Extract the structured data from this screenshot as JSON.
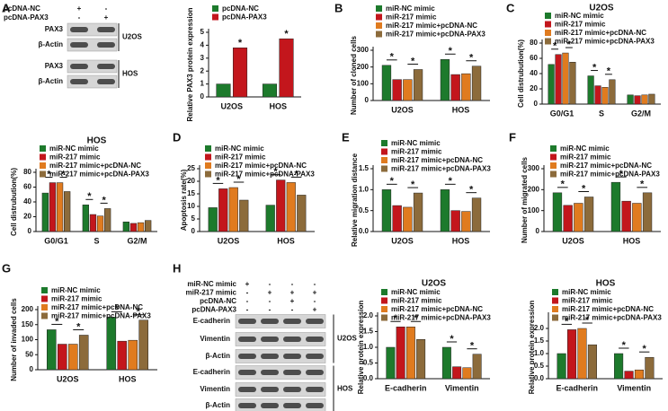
{
  "chart_data": [
    {
      "type": "bar",
      "panel": "A",
      "ylabel": "Relative PAX3 protein expression",
      "categories": [
        "U2OS",
        "HOS"
      ],
      "series": [
        {
          "name": "pcDNA-NC",
          "color": "#1d7a2c",
          "values": [
            1,
            1
          ]
        },
        {
          "name": "pcDNA-PAX3",
          "color": "#c3161c",
          "values": [
            3.8,
            4.5
          ]
        }
      ],
      "ylim": [
        0,
        5
      ],
      "yticks": [
        0,
        1,
        2,
        3,
        4,
        5
      ],
      "annotations": [
        "*",
        "*"
      ]
    },
    {
      "type": "bar",
      "panel": "B",
      "ylabel": "Number of cloned cells",
      "categories": [
        "U2OS",
        "HOS"
      ],
      "series": [
        {
          "name": "miR-NC mimic",
          "color": "#1d7a2c",
          "values": [
            210,
            245
          ]
        },
        {
          "name": "miR-217 mimic",
          "color": "#c3161c",
          "values": [
            125,
            155
          ]
        },
        {
          "name": "miR-217 mimic+pcDNA-NC",
          "color": "#e07b1f",
          "values": [
            125,
            160
          ]
        },
        {
          "name": "miR-217 mimic+pcDNA-PAX3",
          "color": "#8c6b3b",
          "values": [
            185,
            205
          ]
        }
      ],
      "ylim": [
        0,
        300
      ],
      "yticks": [
        0,
        100,
        200,
        300
      ],
      "annotations": [
        "*",
        "*",
        "*",
        "*"
      ]
    },
    {
      "type": "bar",
      "panel": "C",
      "title": "U2OS",
      "ylabel": "Cell distrubution(%)",
      "categories": [
        "G0/G1",
        "S",
        "G2/M"
      ],
      "series": [
        {
          "name": "miR-NC mimic",
          "color": "#1d7a2c",
          "values": [
            52,
            37,
            12
          ]
        },
        {
          "name": "miR-217 mimic",
          "color": "#c3161c",
          "values": [
            65,
            24,
            11
          ]
        },
        {
          "name": "miR-217 mimic+pcDNA-NC",
          "color": "#e07b1f",
          "values": [
            67,
            22,
            12
          ]
        },
        {
          "name": "miR-217 mimic+pcDNA-PAX3",
          "color": "#8c6b3b",
          "values": [
            55,
            32,
            13
          ]
        }
      ],
      "ylim": [
        0,
        80
      ],
      "yticks": [
        0,
        20,
        40,
        60,
        80
      ],
      "annotations": [
        "*",
        "*",
        "*",
        "*"
      ]
    },
    {
      "type": "bar",
      "title": "HOS",
      "ylabel": "Cell distrubution(%)",
      "categories": [
        "G0/G1",
        "S",
        "G2/M"
      ],
      "series": [
        {
          "name": "miR-NC mimic",
          "color": "#1d7a2c",
          "values": [
            52,
            36,
            13
          ]
        },
        {
          "name": "miR-217 mimic",
          "color": "#c3161c",
          "values": [
            66,
            23,
            11
          ]
        },
        {
          "name": "miR-217 mimic+pcDNA-NC",
          "color": "#e07b1f",
          "values": [
            66,
            21,
            12
          ]
        },
        {
          "name": "miR-217 mimic+pcDNA-PAX3",
          "color": "#8c6b3b",
          "values": [
            54,
            31,
            15
          ]
        }
      ],
      "ylim": [
        0,
        80
      ],
      "yticks": [
        0,
        20,
        40,
        60,
        80
      ],
      "annotations": [
        "*",
        "*",
        "*",
        "*"
      ]
    },
    {
      "type": "bar",
      "panel": "D",
      "ylabel": "Apoptosis rate(%)",
      "categories": [
        "U2OS",
        "HOS"
      ],
      "series": [
        {
          "name": "miR-NC mimic",
          "color": "#1d7a2c",
          "values": [
            9.5,
            10.5
          ]
        },
        {
          "name": "miR-217 mimic",
          "color": "#c3161c",
          "values": [
            17,
            20.5
          ]
        },
        {
          "name": "miR-217 mimic+pcDNA-NC",
          "color": "#e07b1f",
          "values": [
            17.5,
            19.5
          ]
        },
        {
          "name": "miR-217 mimic+pcDNA-PAX3",
          "color": "#8c6b3b",
          "values": [
            12.5,
            14.5
          ]
        }
      ],
      "ylim": [
        0,
        25
      ],
      "yticks": [
        0,
        5,
        10,
        15,
        20,
        25
      ],
      "annotations": [
        "*",
        "*",
        "*",
        "*"
      ]
    },
    {
      "type": "bar",
      "panel": "E",
      "ylabel": "Relative migration distance",
      "categories": [
        "U2OS",
        "HOS"
      ],
      "series": [
        {
          "name": "miR-NC mimic",
          "color": "#1d7a2c",
          "values": [
            1.0,
            1.0
          ]
        },
        {
          "name": "miR-217 mimic",
          "color": "#c3161c",
          "values": [
            0.62,
            0.5
          ]
        },
        {
          "name": "miR-217 mimic+pcDNA-NC",
          "color": "#e07b1f",
          "values": [
            0.58,
            0.48
          ]
        },
        {
          "name": "miR-217 mimic+pcDNA-PAX3",
          "color": "#8c6b3b",
          "values": [
            0.92,
            0.8
          ]
        }
      ],
      "ylim": [
        0,
        1.5
      ],
      "yticks": [
        {
          "value": 0,
          "label": "0.0"
        },
        0.5,
        {
          "value": 1,
          "label": "1.0"
        },
        1.5
      ],
      "annotations": [
        "*",
        "*",
        "*",
        "*"
      ]
    },
    {
      "type": "bar",
      "panel": "F",
      "ylabel": "Number of migrated cells",
      "categories": [
        "U2OS",
        "HOS"
      ],
      "series": [
        {
          "name": "miR-NC mimic",
          "color": "#1d7a2c",
          "values": [
            185,
            235
          ]
        },
        {
          "name": "miR-217 mimic",
          "color": "#c3161c",
          "values": [
            125,
            145
          ]
        },
        {
          "name": "miR-217 mimic+pcDNA-NC",
          "color": "#e07b1f",
          "values": [
            135,
            135
          ]
        },
        {
          "name": "miR-217 mimic+pcDNA-PAX3",
          "color": "#8c6b3b",
          "values": [
            165,
            185
          ]
        }
      ],
      "ylim": [
        0,
        300
      ],
      "yticks": [
        0,
        100,
        200,
        300
      ],
      "annotations": [
        "*",
        "*",
        "*",
        "*"
      ]
    },
    {
      "type": "bar",
      "panel": "G",
      "ylabel": "Number of invaded cells",
      "categories": [
        "U2OS",
        "HOS"
      ],
      "series": [
        {
          "name": "miR-NC mimic",
          "color": "#1d7a2c",
          "values": [
            133,
            175
          ]
        },
        {
          "name": "miR-217 mimic",
          "color": "#c3161c",
          "values": [
            85,
            95
          ]
        },
        {
          "name": "miR-217 mimic+pcDNA-NC",
          "color": "#e07b1f",
          "values": [
            85,
            98
          ]
        },
        {
          "name": "miR-217 mimic+pcDNA-PAX3",
          "color": "#8c6b3b",
          "values": [
            115,
            165
          ]
        }
      ],
      "ylim": [
        0,
        200
      ],
      "yticks": [
        0,
        50,
        100,
        150,
        200
      ],
      "annotations": [
        "*",
        "*",
        "*",
        "*"
      ]
    },
    {
      "type": "bar",
      "panel": "H",
      "title": "U2OS",
      "ylabel": "Relative protein expression",
      "categories": [
        "E-cadherin",
        "Vimentin"
      ],
      "series": [
        {
          "name": "miR-NC mimic",
          "color": "#1d7a2c",
          "values": [
            1.0,
            1.0
          ]
        },
        {
          "name": "miR-217 mimic",
          "color": "#c3161c",
          "values": [
            1.65,
            0.38
          ]
        },
        {
          "name": "miR-217 mimic+pcDNA-NC",
          "color": "#e07b1f",
          "values": [
            1.65,
            0.35
          ]
        },
        {
          "name": "miR-217 mimic+pcDNA-PAX3",
          "color": "#8c6b3b",
          "values": [
            1.25,
            0.78
          ]
        }
      ],
      "ylim": [
        0,
        2
      ],
      "yticks": [
        {
          "value": 0,
          "label": "0.0"
        },
        0.5,
        {
          "value": 1,
          "label": "1.0"
        },
        1.5,
        {
          "value": 2,
          "label": "2.0"
        }
      ],
      "annotations": [
        "*",
        "*",
        "*",
        "*"
      ]
    },
    {
      "type": "bar",
      "title": "HOS",
      "ylabel": "Relative protein expression",
      "categories": [
        "E-cadherin",
        "Vimentin"
      ],
      "series": [
        {
          "name": "miR-NC mimic",
          "color": "#1d7a2c",
          "values": [
            1.0,
            1.0
          ]
        },
        {
          "name": "miR-217 mimic",
          "color": "#c3161c",
          "values": [
            1.95,
            0.3
          ]
        },
        {
          "name": "miR-217 mimic+pcDNA-NC",
          "color": "#e07b1f",
          "values": [
            2.0,
            0.35
          ]
        },
        {
          "name": "miR-217 mimic+pcDNA-PAX3",
          "color": "#8c6b3b",
          "values": [
            1.35,
            0.85
          ]
        }
      ],
      "ylim": [
        0,
        2.5
      ],
      "yticks": [
        {
          "value": 0,
          "label": "0.0"
        },
        0.5,
        {
          "value": 1,
          "label": "1.0"
        },
        1.5,
        {
          "value": 2,
          "label": "2.0"
        }
      ],
      "annotations": [
        "*",
        "*",
        "*",
        "*"
      ]
    }
  ],
  "blots": [
    {
      "conditions": [
        "pcDNA-NC",
        "pcDNA-PAX3"
      ],
      "signs": [
        [
          "+",
          "-"
        ],
        [
          "-",
          "+"
        ]
      ],
      "rows": [
        "PAX3",
        "β-Actin",
        "PAX3",
        "β-Actin"
      ],
      "cell_lines": [
        "U2OS",
        "HOS"
      ]
    },
    {
      "conditions": [
        "miR-NC mimic",
        "miR-217 mimic",
        "pcDNA-NC",
        "pcDNA-PAX3"
      ],
      "signs": [
        [
          "+",
          "-",
          "-",
          "-"
        ],
        [
          "-",
          "+",
          "+",
          "+"
        ],
        [
          "-",
          "-",
          "+",
          "-"
        ],
        [
          "-",
          "-",
          "-",
          "+"
        ]
      ],
      "rows": [
        "E-cadherin",
        "Vimentin",
        "β-Actin",
        "E-cadherin",
        "Vimentin",
        "β-Actin"
      ],
      "cell_lines": [
        "U2OS",
        "HOS"
      ]
    }
  ]
}
